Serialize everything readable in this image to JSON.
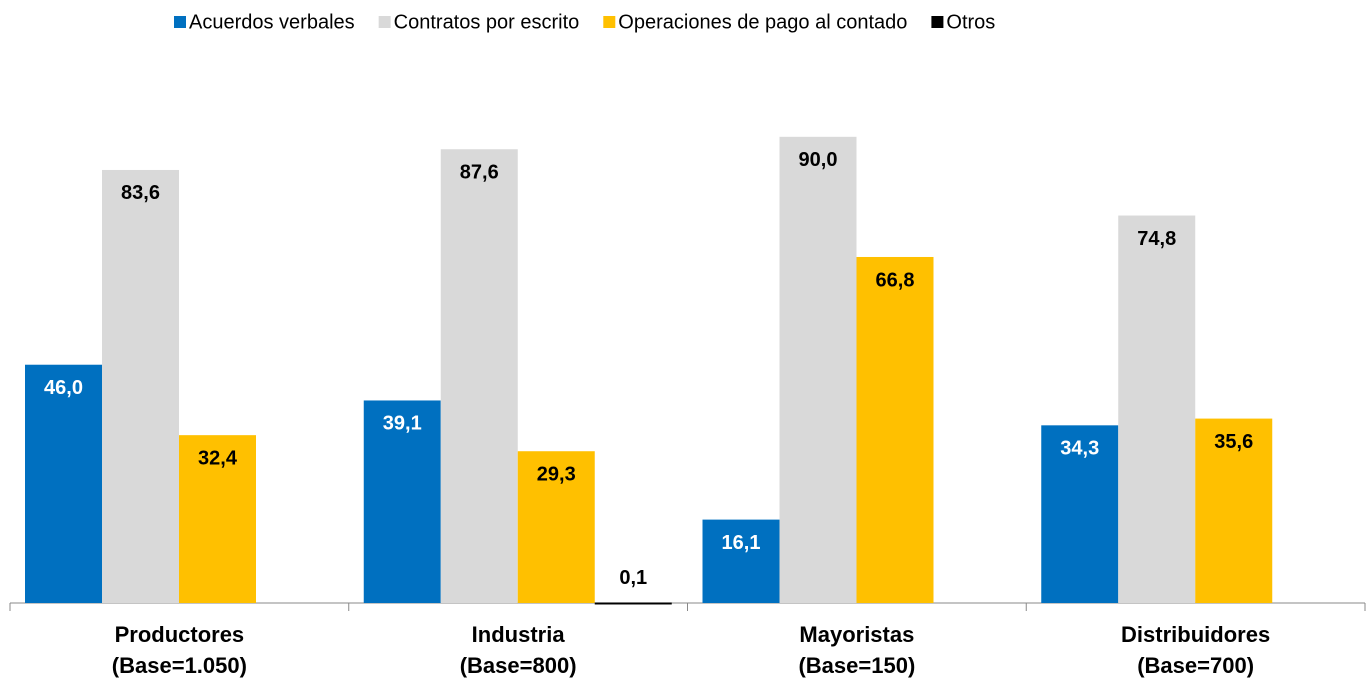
{
  "chart_data": {
    "type": "bar",
    "categories": [
      [
        "Productores",
        "(Base=1.050)"
      ],
      [
        "Industria",
        "(Base=800)"
      ],
      [
        "Mayoristas",
        "(Base=150)"
      ],
      [
        "Distribuidores",
        "(Base=700)"
      ]
    ],
    "series": [
      {
        "name": "Acuerdos verbales",
        "color": "#0070c0",
        "values": [
          46.0,
          39.1,
          16.1,
          34.3
        ],
        "value_labels": [
          "46,0",
          "39,1",
          "16,1",
          "34,3"
        ]
      },
      {
        "name": "Contratos por escrito",
        "color": "#d9d9d9",
        "values": [
          83.6,
          87.6,
          90.0,
          74.8
        ],
        "value_labels": [
          "83,6",
          "87,6",
          "90,0",
          "74,8"
        ]
      },
      {
        "name": "Operaciones de pago al contado",
        "color": "#ffc000",
        "values": [
          32.4,
          29.3,
          66.8,
          35.6
        ],
        "value_labels": [
          "32,4",
          "29,3",
          "66,8",
          "35,6"
        ]
      },
      {
        "name": "Otros",
        "color": "#000000",
        "values": [
          null,
          0.1,
          null,
          null
        ],
        "value_labels": [
          null,
          "0,1",
          null,
          null
        ]
      }
    ],
    "ylim": [
      0,
      100
    ],
    "legend": "top"
  }
}
